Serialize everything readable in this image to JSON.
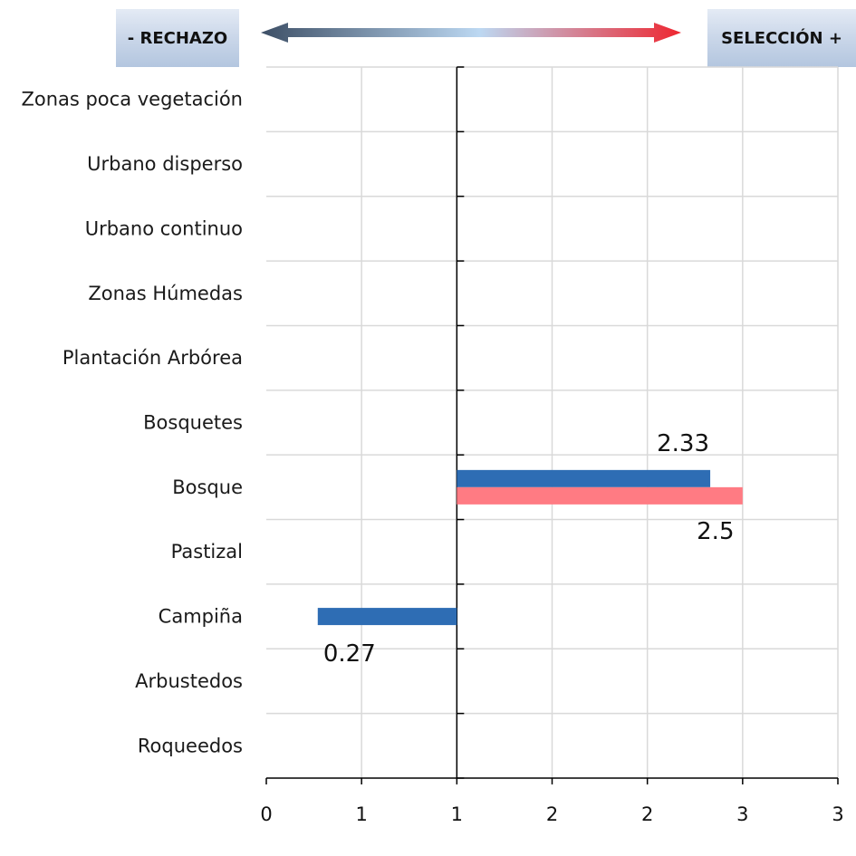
{
  "header": {
    "left_label": "- RECHAZO",
    "right_label": "SELECCIÓN +"
  },
  "colors": {
    "series_blue": "#2e6db4",
    "series_red": "#ff7b83",
    "grid": "#d9d9d9",
    "arrow_left": "#3d4f66",
    "arrow_mid": "#bcd8f2",
    "arrow_right": "#ee2630"
  },
  "chart_data": {
    "type": "bar",
    "orientation": "horizontal",
    "baseline": 1,
    "categories": [
      "Zonas poca vegetación",
      "Urbano disperso",
      "Urbano continuo",
      "Zonas Húmedas",
      "Plantación Arbórea",
      "Bosquetes",
      "Bosque",
      "Pastizal",
      "Campiña",
      "Arbustedos",
      "Roqueedos"
    ],
    "series": [
      {
        "color": "#2e6db4",
        "values": [
          null,
          null,
          null,
          null,
          null,
          null,
          2.33,
          null,
          0.27,
          null,
          null
        ],
        "data_labels": [
          "",
          "",
          "",
          "",
          "",
          "",
          "2.33",
          "",
          "0.27",
          "",
          ""
        ]
      },
      {
        "color": "#ff7b83",
        "values": [
          null,
          null,
          null,
          null,
          null,
          null,
          2.5,
          null,
          null,
          null,
          null
        ],
        "data_labels": [
          "",
          "",
          "",
          "",
          "",
          "",
          "2.5",
          "",
          "",
          "",
          ""
        ]
      }
    ],
    "x_tick_labels": [
      "0",
      "1",
      "1",
      "2",
      "2",
      "3",
      "3"
    ],
    "xlim": [
      0,
      3
    ],
    "grid": true,
    "legend": "none",
    "title": "",
    "xlabel": "",
    "ylabel": ""
  }
}
